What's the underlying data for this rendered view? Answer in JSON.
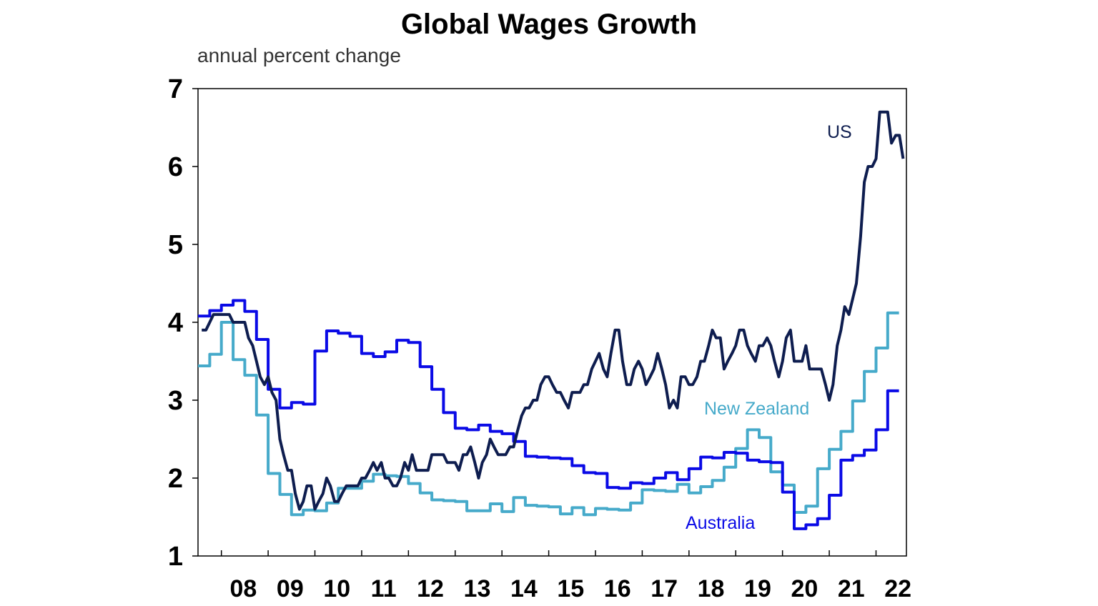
{
  "chart_data": {
    "type": "line",
    "title": "Global Wages Growth",
    "subtitle": "annual percent change",
    "xlabel": "",
    "ylabel": "",
    "ylim": [
      1,
      7
    ],
    "xlim": [
      2007.5,
      2022.65
    ],
    "yticks": [
      "1",
      "2",
      "3",
      "4",
      "5",
      "6",
      "7"
    ],
    "xticks": [
      "08",
      "09",
      "10",
      "11",
      "12",
      "13",
      "14",
      "15",
      "16",
      "17",
      "18",
      "19",
      "20",
      "21",
      "22"
    ],
    "grid": false,
    "legend": "direct labels",
    "series": [
      {
        "name": "US",
        "color": "#0e1d4f",
        "points": [
          [
            2007.58,
            3.9
          ],
          [
            2007.67,
            3.9
          ],
          [
            2007.75,
            4.0
          ],
          [
            2007.83,
            4.1
          ],
          [
            2007.92,
            4.1
          ],
          [
            2008.0,
            4.1
          ],
          [
            2008.08,
            4.1
          ],
          [
            2008.17,
            4.1
          ],
          [
            2008.25,
            4.0
          ],
          [
            2008.33,
            4.0
          ],
          [
            2008.42,
            4.0
          ],
          [
            2008.5,
            4.0
          ],
          [
            2008.58,
            3.8
          ],
          [
            2008.67,
            3.7
          ],
          [
            2008.75,
            3.5
          ],
          [
            2008.83,
            3.3
          ],
          [
            2008.92,
            3.2
          ],
          [
            2009.0,
            3.3
          ],
          [
            2009.08,
            3.1
          ],
          [
            2009.17,
            3.0
          ],
          [
            2009.25,
            2.5
          ],
          [
            2009.33,
            2.3
          ],
          [
            2009.42,
            2.1
          ],
          [
            2009.5,
            2.1
          ],
          [
            2009.58,
            1.8
          ],
          [
            2009.67,
            1.6
          ],
          [
            2009.75,
            1.7
          ],
          [
            2009.83,
            1.9
          ],
          [
            2009.92,
            1.9
          ],
          [
            2010.0,
            1.6
          ],
          [
            2010.08,
            1.7
          ],
          [
            2010.17,
            1.8
          ],
          [
            2010.25,
            2.0
          ],
          [
            2010.33,
            1.9
          ],
          [
            2010.42,
            1.7
          ],
          [
            2010.5,
            1.7
          ],
          [
            2010.58,
            1.8
          ],
          [
            2010.67,
            1.9
          ],
          [
            2010.75,
            1.9
          ],
          [
            2010.83,
            1.9
          ],
          [
            2010.92,
            1.9
          ],
          [
            2011.0,
            2.0
          ],
          [
            2011.08,
            2.0
          ],
          [
            2011.17,
            2.1
          ],
          [
            2011.25,
            2.2
          ],
          [
            2011.33,
            2.1
          ],
          [
            2011.42,
            2.2
          ],
          [
            2011.5,
            2.0
          ],
          [
            2011.58,
            2.0
          ],
          [
            2011.67,
            1.9
          ],
          [
            2011.75,
            1.9
          ],
          [
            2011.83,
            2.0
          ],
          [
            2011.92,
            2.2
          ],
          [
            2012.0,
            2.1
          ],
          [
            2012.08,
            2.3
          ],
          [
            2012.17,
            2.1
          ],
          [
            2012.25,
            2.1
          ],
          [
            2012.33,
            2.1
          ],
          [
            2012.42,
            2.1
          ],
          [
            2012.5,
            2.3
          ],
          [
            2012.58,
            2.3
          ],
          [
            2012.67,
            2.3
          ],
          [
            2012.75,
            2.3
          ],
          [
            2012.83,
            2.2
          ],
          [
            2012.92,
            2.2
          ],
          [
            2013.0,
            2.2
          ],
          [
            2013.08,
            2.1
          ],
          [
            2013.17,
            2.3
          ],
          [
            2013.25,
            2.3
          ],
          [
            2013.33,
            2.4
          ],
          [
            2013.42,
            2.2
          ],
          [
            2013.5,
            2.0
          ],
          [
            2013.58,
            2.2
          ],
          [
            2013.67,
            2.3
          ],
          [
            2013.75,
            2.5
          ],
          [
            2013.83,
            2.4
          ],
          [
            2013.92,
            2.3
          ],
          [
            2014.0,
            2.3
          ],
          [
            2014.08,
            2.3
          ],
          [
            2014.17,
            2.4
          ],
          [
            2014.25,
            2.4
          ],
          [
            2014.33,
            2.6
          ],
          [
            2014.42,
            2.8
          ],
          [
            2014.5,
            2.9
          ],
          [
            2014.58,
            2.9
          ],
          [
            2014.67,
            3.0
          ],
          [
            2014.75,
            3.0
          ],
          [
            2014.83,
            3.2
          ],
          [
            2014.92,
            3.3
          ],
          [
            2015.0,
            3.3
          ],
          [
            2015.08,
            3.2
          ],
          [
            2015.17,
            3.1
          ],
          [
            2015.25,
            3.1
          ],
          [
            2015.33,
            3.0
          ],
          [
            2015.42,
            2.9
          ],
          [
            2015.5,
            3.1
          ],
          [
            2015.58,
            3.1
          ],
          [
            2015.67,
            3.1
          ],
          [
            2015.75,
            3.2
          ],
          [
            2015.83,
            3.2
          ],
          [
            2015.92,
            3.4
          ],
          [
            2016.0,
            3.5
          ],
          [
            2016.08,
            3.6
          ],
          [
            2016.17,
            3.4
          ],
          [
            2016.25,
            3.3
          ],
          [
            2016.33,
            3.6
          ],
          [
            2016.42,
            3.9
          ],
          [
            2016.5,
            3.9
          ],
          [
            2016.58,
            3.5
          ],
          [
            2016.67,
            3.2
          ],
          [
            2016.75,
            3.2
          ],
          [
            2016.83,
            3.4
          ],
          [
            2016.92,
            3.5
          ],
          [
            2017.0,
            3.4
          ],
          [
            2017.08,
            3.2
          ],
          [
            2017.17,
            3.3
          ],
          [
            2017.25,
            3.4
          ],
          [
            2017.33,
            3.6
          ],
          [
            2017.42,
            3.4
          ],
          [
            2017.5,
            3.2
          ],
          [
            2017.58,
            2.9
          ],
          [
            2017.67,
            3.0
          ],
          [
            2017.75,
            2.9
          ],
          [
            2017.83,
            3.3
          ],
          [
            2017.92,
            3.3
          ],
          [
            2018.0,
            3.2
          ],
          [
            2018.08,
            3.2
          ],
          [
            2018.17,
            3.3
          ],
          [
            2018.25,
            3.5
          ],
          [
            2018.33,
            3.5
          ],
          [
            2018.42,
            3.7
          ],
          [
            2018.5,
            3.9
          ],
          [
            2018.58,
            3.8
          ],
          [
            2018.67,
            3.8
          ],
          [
            2018.75,
            3.4
          ],
          [
            2018.83,
            3.5
          ],
          [
            2018.92,
            3.6
          ],
          [
            2019.0,
            3.7
          ],
          [
            2019.08,
            3.9
          ],
          [
            2019.17,
            3.9
          ],
          [
            2019.25,
            3.7
          ],
          [
            2019.33,
            3.6
          ],
          [
            2019.42,
            3.5
          ],
          [
            2019.5,
            3.7
          ],
          [
            2019.58,
            3.7
          ],
          [
            2019.67,
            3.8
          ],
          [
            2019.75,
            3.7
          ],
          [
            2019.83,
            3.5
          ],
          [
            2019.92,
            3.3
          ],
          [
            2020.0,
            3.5
          ],
          [
            2020.08,
            3.8
          ],
          [
            2020.17,
            3.9
          ],
          [
            2020.25,
            3.5
          ],
          [
            2020.33,
            3.5
          ],
          [
            2020.42,
            3.5
          ],
          [
            2020.5,
            3.7
          ],
          [
            2020.58,
            3.4
          ],
          [
            2020.67,
            3.4
          ],
          [
            2020.75,
            3.4
          ],
          [
            2020.83,
            3.4
          ],
          [
            2020.92,
            3.2
          ],
          [
            2021.0,
            3.0
          ],
          [
            2021.08,
            3.2
          ],
          [
            2021.17,
            3.7
          ],
          [
            2021.25,
            3.9
          ],
          [
            2021.33,
            4.2
          ],
          [
            2021.42,
            4.1
          ],
          [
            2021.5,
            4.3
          ],
          [
            2021.58,
            4.5
          ],
          [
            2021.67,
            5.1
          ],
          [
            2021.75,
            5.8
          ],
          [
            2021.83,
            6.0
          ],
          [
            2021.92,
            6.0
          ],
          [
            2022.0,
            6.1
          ],
          [
            2022.08,
            6.7
          ],
          [
            2022.17,
            6.7
          ],
          [
            2022.25,
            6.7
          ],
          [
            2022.33,
            6.3
          ],
          [
            2022.42,
            6.4
          ],
          [
            2022.5,
            6.4
          ],
          [
            2022.58,
            6.1
          ]
        ]
      },
      {
        "name": "Australia",
        "color": "#0a0ae6",
        "points": [
          [
            2007.5,
            4.08
          ],
          [
            2007.75,
            4.15
          ],
          [
            2008.0,
            4.22
          ],
          [
            2008.25,
            4.28
          ],
          [
            2008.5,
            4.14
          ],
          [
            2008.75,
            3.78
          ],
          [
            2009.0,
            3.14
          ],
          [
            2009.25,
            2.9
          ],
          [
            2009.5,
            2.97
          ],
          [
            2009.75,
            2.95
          ],
          [
            2010.0,
            3.63
          ],
          [
            2010.25,
            3.89
          ],
          [
            2010.5,
            3.86
          ],
          [
            2010.75,
            3.82
          ],
          [
            2011.0,
            3.6
          ],
          [
            2011.25,
            3.56
          ],
          [
            2011.5,
            3.62
          ],
          [
            2011.75,
            3.77
          ],
          [
            2012.0,
            3.74
          ],
          [
            2012.25,
            3.43
          ],
          [
            2012.5,
            3.14
          ],
          [
            2012.75,
            2.84
          ],
          [
            2013.0,
            2.64
          ],
          [
            2013.25,
            2.62
          ],
          [
            2013.5,
            2.68
          ],
          [
            2013.75,
            2.6
          ],
          [
            2014.0,
            2.57
          ],
          [
            2014.25,
            2.47
          ],
          [
            2014.5,
            2.28
          ],
          [
            2014.75,
            2.27
          ],
          [
            2015.0,
            2.26
          ],
          [
            2015.25,
            2.25
          ],
          [
            2015.5,
            2.16
          ],
          [
            2015.75,
            2.07
          ],
          [
            2016.0,
            2.06
          ],
          [
            2016.25,
            1.88
          ],
          [
            2016.5,
            1.87
          ],
          [
            2016.75,
            1.94
          ],
          [
            2017.0,
            1.93
          ],
          [
            2017.25,
            2.0
          ],
          [
            2017.5,
            2.07
          ],
          [
            2017.75,
            1.98
          ],
          [
            2018.0,
            2.12
          ],
          [
            2018.25,
            2.27
          ],
          [
            2018.5,
            2.26
          ],
          [
            2018.75,
            2.33
          ],
          [
            2019.0,
            2.32
          ],
          [
            2019.25,
            2.23
          ],
          [
            2019.5,
            2.21
          ],
          [
            2019.75,
            2.2
          ],
          [
            2020.0,
            1.82
          ],
          [
            2020.25,
            1.35
          ],
          [
            2020.5,
            1.4
          ],
          [
            2020.75,
            1.48
          ],
          [
            2021.0,
            1.78
          ],
          [
            2021.25,
            2.23
          ],
          [
            2021.5,
            2.29
          ],
          [
            2021.75,
            2.36
          ],
          [
            2022.0,
            2.62
          ],
          [
            2022.25,
            3.12
          ],
          [
            2022.4,
            3.12
          ]
        ]
      },
      {
        "name": "New Zealand",
        "color": "#46aaca",
        "points": [
          [
            2007.5,
            3.44
          ],
          [
            2007.75,
            3.59
          ],
          [
            2008.0,
            4.0
          ],
          [
            2008.25,
            3.52
          ],
          [
            2008.5,
            3.32
          ],
          [
            2008.75,
            2.81
          ],
          [
            2009.0,
            2.06
          ],
          [
            2009.25,
            1.79
          ],
          [
            2009.5,
            1.53
          ],
          [
            2009.75,
            1.59
          ],
          [
            2010.0,
            1.58
          ],
          [
            2010.25,
            1.68
          ],
          [
            2010.5,
            1.87
          ],
          [
            2010.75,
            1.87
          ],
          [
            2011.0,
            1.96
          ],
          [
            2011.25,
            2.05
          ],
          [
            2011.5,
            2.03
          ],
          [
            2011.75,
            2.02
          ],
          [
            2012.0,
            1.93
          ],
          [
            2012.25,
            1.81
          ],
          [
            2012.5,
            1.72
          ],
          [
            2012.75,
            1.71
          ],
          [
            2013.0,
            1.7
          ],
          [
            2013.25,
            1.58
          ],
          [
            2013.5,
            1.58
          ],
          [
            2013.75,
            1.67
          ],
          [
            2014.0,
            1.57
          ],
          [
            2014.25,
            1.75
          ],
          [
            2014.5,
            1.65
          ],
          [
            2014.75,
            1.64
          ],
          [
            2015.0,
            1.63
          ],
          [
            2015.25,
            1.54
          ],
          [
            2015.5,
            1.62
          ],
          [
            2015.75,
            1.53
          ],
          [
            2016.0,
            1.61
          ],
          [
            2016.25,
            1.6
          ],
          [
            2016.5,
            1.59
          ],
          [
            2016.75,
            1.68
          ],
          [
            2017.0,
            1.85
          ],
          [
            2017.25,
            1.84
          ],
          [
            2017.5,
            1.83
          ],
          [
            2017.75,
            1.92
          ],
          [
            2018.0,
            1.81
          ],
          [
            2018.25,
            1.89
          ],
          [
            2018.5,
            1.97
          ],
          [
            2018.75,
            2.14
          ],
          [
            2019.0,
            2.38
          ],
          [
            2019.25,
            2.62
          ],
          [
            2019.5,
            2.52
          ],
          [
            2019.75,
            2.08
          ],
          [
            2020.0,
            1.91
          ],
          [
            2020.25,
            1.56
          ],
          [
            2020.5,
            1.64
          ],
          [
            2020.75,
            2.12
          ],
          [
            2021.0,
            2.37
          ],
          [
            2021.25,
            2.6
          ],
          [
            2021.5,
            2.99
          ],
          [
            2021.75,
            3.37
          ],
          [
            2022.0,
            3.67
          ],
          [
            2022.25,
            4.12
          ],
          [
            2022.4,
            4.12
          ]
        ]
      }
    ]
  }
}
